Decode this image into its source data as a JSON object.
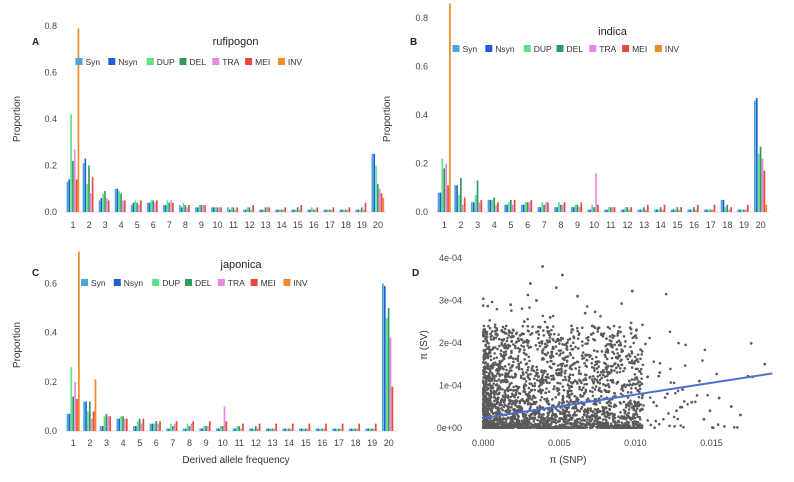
{
  "chart_data": [
    {
      "panel": "A",
      "type": "bar",
      "title": "rufipogon",
      "ylabel": "Proportion",
      "xlabel": "",
      "ylim": [
        0,
        0.8
      ],
      "yticks": [
        0.0,
        0.2,
        0.4,
        0.6,
        0.8
      ],
      "categories": [
        "1",
        "2",
        "3",
        "4",
        "5",
        "6",
        "7",
        "8",
        "9",
        "10",
        "11",
        "12",
        "13",
        "14",
        "15",
        "16",
        "17",
        "18",
        "19",
        "20"
      ],
      "series": [
        {
          "name": "Syn",
          "color": "#4aa6d8",
          "values": [
            0.13,
            0.21,
            0.05,
            0.1,
            0.03,
            0.04,
            0.03,
            0.03,
            0.02,
            0.02,
            0.02,
            0.01,
            0.01,
            0.01,
            0.01,
            0.01,
            0.01,
            0.01,
            0.01,
            0.25
          ]
        },
        {
          "name": "Nsyn",
          "color": "#1f5fd6",
          "values": [
            0.14,
            0.23,
            0.06,
            0.1,
            0.04,
            0.04,
            0.03,
            0.02,
            0.02,
            0.02,
            0.01,
            0.01,
            0.01,
            0.01,
            0.01,
            0.01,
            0.01,
            0.01,
            0.01,
            0.25
          ]
        },
        {
          "name": "DUP",
          "color": "#5fe08a",
          "values": [
            0.42,
            0.12,
            0.08,
            0.09,
            0.05,
            0.05,
            0.05,
            0.04,
            0.03,
            0.02,
            0.02,
            0.02,
            0.01,
            0.01,
            0.01,
            0.02,
            0.01,
            0.01,
            0.01,
            0.2
          ]
        },
        {
          "name": "DEL",
          "color": "#2e9a5e",
          "values": [
            0.22,
            0.2,
            0.09,
            0.08,
            0.04,
            0.05,
            0.04,
            0.03,
            0.03,
            0.02,
            0.02,
            0.02,
            0.02,
            0.01,
            0.02,
            0.01,
            0.01,
            0.01,
            0.02,
            0.12
          ]
        },
        {
          "name": "TRA",
          "color": "#e58ae0",
          "values": [
            0.27,
            0.08,
            0.06,
            0.05,
            0.03,
            0.04,
            0.05,
            0.02,
            0.03,
            0.02,
            0.01,
            0.01,
            0.02,
            0.01,
            0.01,
            0.01,
            0.01,
            0.01,
            0.01,
            0.1
          ]
        },
        {
          "name": "MEI",
          "color": "#e84a3a",
          "values": [
            0.14,
            0.15,
            0.05,
            0.05,
            0.05,
            0.05,
            0.04,
            0.03,
            0.03,
            0.02,
            0.02,
            0.03,
            0.02,
            0.02,
            0.03,
            0.02,
            0.02,
            0.02,
            0.04,
            0.08
          ]
        },
        {
          "name": "INV",
          "color": "#f0892a",
          "values": [
            0.79,
            0.0,
            0.0,
            0.0,
            0.0,
            0.0,
            0.0,
            0.0,
            0.0,
            0.0,
            0.0,
            0.0,
            0.0,
            0.0,
            0.0,
            0.0,
            0.0,
            0.0,
            0.0,
            0.06
          ]
        }
      ]
    },
    {
      "panel": "B",
      "type": "bar",
      "title": "indica",
      "ylabel": "Proportion",
      "xlabel": "",
      "ylim": [
        0,
        0.8
      ],
      "yticks": [
        0.0,
        0.2,
        0.4,
        0.6,
        0.8
      ],
      "categories": [
        "1",
        "2",
        "3",
        "4",
        "5",
        "6",
        "7",
        "8",
        "9",
        "10",
        "11",
        "12",
        "13",
        "14",
        "15",
        "16",
        "17",
        "18",
        "19",
        "20"
      ],
      "series": [
        {
          "name": "Syn",
          "color": "#4aa6d8",
          "values": [
            0.08,
            0.11,
            0.04,
            0.05,
            0.03,
            0.03,
            0.02,
            0.02,
            0.02,
            0.01,
            0.01,
            0.01,
            0.01,
            0.01,
            0.01,
            0.01,
            0.01,
            0.05,
            0.01,
            0.46
          ]
        },
        {
          "name": "Nsyn",
          "color": "#1f5fd6",
          "values": [
            0.08,
            0.11,
            0.04,
            0.05,
            0.03,
            0.03,
            0.02,
            0.02,
            0.02,
            0.01,
            0.01,
            0.01,
            0.01,
            0.01,
            0.01,
            0.01,
            0.01,
            0.05,
            0.01,
            0.47
          ]
        },
        {
          "name": "DUP",
          "color": "#5fe08a",
          "values": [
            0.22,
            0.07,
            0.07,
            0.05,
            0.04,
            0.04,
            0.04,
            0.04,
            0.03,
            0.03,
            0.02,
            0.02,
            0.01,
            0.01,
            0.01,
            0.01,
            0.01,
            0.02,
            0.01,
            0.24
          ]
        },
        {
          "name": "DEL",
          "color": "#2e9a5e",
          "values": [
            0.18,
            0.14,
            0.13,
            0.06,
            0.05,
            0.04,
            0.03,
            0.03,
            0.03,
            0.02,
            0.02,
            0.02,
            0.02,
            0.02,
            0.02,
            0.02,
            0.01,
            0.03,
            0.01,
            0.27
          ]
        },
        {
          "name": "TRA",
          "color": "#e58ae0",
          "values": [
            0.2,
            0.03,
            0.04,
            0.03,
            0.03,
            0.04,
            0.04,
            0.03,
            0.02,
            0.16,
            0.02,
            0.01,
            0.01,
            0.01,
            0.01,
            0.01,
            0.01,
            0.01,
            0.01,
            0.22
          ]
        },
        {
          "name": "MEI",
          "color": "#e84a3a",
          "values": [
            0.11,
            0.06,
            0.05,
            0.04,
            0.05,
            0.05,
            0.04,
            0.04,
            0.04,
            0.03,
            0.02,
            0.02,
            0.03,
            0.03,
            0.02,
            0.03,
            0.03,
            0.02,
            0.03,
            0.17
          ]
        },
        {
          "name": "INV",
          "color": "#f0892a",
          "values": [
            0.86,
            0.0,
            0.0,
            0.0,
            0.0,
            0.0,
            0.0,
            0.0,
            0.0,
            0.0,
            0.0,
            0.0,
            0.0,
            0.0,
            0.0,
            0.0,
            0.0,
            0.0,
            0.0,
            0.03
          ]
        }
      ]
    },
    {
      "panel": "C",
      "type": "bar",
      "title": "japonica",
      "ylabel": "Proportion",
      "xlabel": "Derived allele frequency",
      "ylim": [
        0,
        0.7
      ],
      "yticks": [
        0.0,
        0.2,
        0.4,
        0.6
      ],
      "categories": [
        "1",
        "2",
        "3",
        "4",
        "5",
        "6",
        "7",
        "8",
        "9",
        "10",
        "11",
        "12",
        "13",
        "14",
        "15",
        "16",
        "17",
        "18",
        "19",
        "20"
      ],
      "series": [
        {
          "name": "Syn",
          "color": "#4aa6d8",
          "values": [
            0.07,
            0.12,
            0.02,
            0.05,
            0.02,
            0.03,
            0.01,
            0.01,
            0.01,
            0.01,
            0.01,
            0.01,
            0.01,
            0.01,
            0.01,
            0.01,
            0.01,
            0.01,
            0.01,
            0.6
          ]
        },
        {
          "name": "Nsyn",
          "color": "#1f5fd6",
          "values": [
            0.07,
            0.12,
            0.02,
            0.05,
            0.02,
            0.03,
            0.01,
            0.01,
            0.01,
            0.01,
            0.01,
            0.01,
            0.01,
            0.01,
            0.01,
            0.01,
            0.01,
            0.01,
            0.01,
            0.59
          ]
        },
        {
          "name": "DUP",
          "color": "#5fe08a",
          "values": [
            0.26,
            0.08,
            0.06,
            0.06,
            0.04,
            0.03,
            0.03,
            0.03,
            0.02,
            0.02,
            0.02,
            0.01,
            0.01,
            0.01,
            0.01,
            0.01,
            0.01,
            0.01,
            0.01,
            0.46
          ]
        },
        {
          "name": "DEL",
          "color": "#2e9a5e",
          "values": [
            0.14,
            0.12,
            0.07,
            0.06,
            0.05,
            0.04,
            0.02,
            0.02,
            0.02,
            0.02,
            0.02,
            0.02,
            0.01,
            0.01,
            0.01,
            0.01,
            0.01,
            0.01,
            0.01,
            0.5
          ]
        },
        {
          "name": "TRA",
          "color": "#e58ae0",
          "values": [
            0.2,
            0.05,
            0.06,
            0.05,
            0.03,
            0.03,
            0.03,
            0.03,
            0.02,
            0.1,
            0.01,
            0.01,
            0.01,
            0.01,
            0.01,
            0.01,
            0.01,
            0.01,
            0.01,
            0.38
          ]
        },
        {
          "name": "MEI",
          "color": "#e84a3a",
          "values": [
            0.13,
            0.08,
            0.06,
            0.05,
            0.05,
            0.04,
            0.04,
            0.04,
            0.04,
            0.04,
            0.03,
            0.03,
            0.03,
            0.03,
            0.03,
            0.03,
            0.03,
            0.03,
            0.03,
            0.18
          ]
        },
        {
          "name": "INV",
          "color": "#f0892a",
          "values": [
            0.73,
            0.21,
            0.0,
            0.0,
            0.0,
            0.0,
            0.0,
            0.0,
            0.0,
            0.0,
            0.0,
            0.0,
            0.0,
            0.0,
            0.0,
            0.0,
            0.0,
            0.0,
            0.0,
            0.0
          ]
        }
      ]
    },
    {
      "panel": "D",
      "type": "scatter",
      "title": "",
      "xlabel": "π (SNP)",
      "ylabel": "π (SV)",
      "xlim": [
        -0.001,
        0.0195
      ],
      "ylim": [
        -1e-05,
        0.0004
      ],
      "xticks": [
        0.0,
        0.005,
        0.01,
        0.015
      ],
      "xtick_labels": [
        "0.000",
        "0.005",
        "0.010",
        "0.015"
      ],
      "yticks": [
        0.0,
        0.0001,
        0.0002,
        0.0003,
        0.0004
      ],
      "ytick_labels": [
        "0e+00",
        "1e-04",
        "2e-04",
        "3e-04",
        "4e-04"
      ],
      "point_color": "#5a5a5a",
      "regression_color": "#4a6fd6",
      "regression_line": {
        "x": [
          0.0,
          0.019
        ],
        "y": [
          2.3e-05,
          0.000128
        ]
      },
      "points": [
        [
          0.0035,
          0.0003
        ],
        [
          0.0048,
          0.00033
        ],
        [
          0.0062,
          0.00031
        ],
        [
          0.0052,
          0.00036
        ],
        [
          0.0039,
          0.00038
        ],
        [
          0.0071,
          0.00022
        ],
        [
          0.0085,
          0.00019
        ],
        [
          0.0101,
          0.00016
        ],
        [
          0.0116,
          0.00013
        ],
        [
          0.0131,
          9e-05
        ],
        [
          0.0142,
          0.00011
        ],
        [
          0.0155,
          7e-05
        ],
        [
          0.0163,
          5e-05
        ],
        [
          0.0177,
          0.00012
        ],
        [
          0.0185,
          0.00015
        ],
        [
          0.0044,
          0.00026
        ],
        [
          0.0058,
          0.00024
        ],
        [
          0.0067,
          0.00027
        ],
        [
          0.0023,
          0.00021
        ],
        [
          0.0012,
          0.00017
        ],
        [
          0.0009,
          0.00023
        ],
        [
          0.0018,
          0.00029
        ],
        [
          0.0075,
          0.00018
        ],
        [
          0.0093,
          0.00014
        ],
        [
          0.0108,
          0.00012
        ],
        [
          0.0121,
          8e-05
        ],
        [
          0.0137,
          6e-05
        ],
        [
          0.0149,
          4e-05
        ],
        [
          0.0169,
          3e-05
        ],
        [
          0.0031,
          0.00034
        ],
        [
          0.0027,
          0.00025
        ],
        [
          0.0081,
          0.00021
        ],
        [
          0.0096,
          0.00011
        ],
        [
          0.0112,
          6e-05
        ],
        [
          0.0127,
          4e-05
        ],
        [
          0.0145,
          2e-05
        ],
        [
          0.0041,
          0.00019
        ],
        [
          0.0055,
          0.0002
        ],
        [
          0.0065,
          0.00017
        ],
        [
          0.0015,
          0.00012
        ]
      ]
    }
  ]
}
